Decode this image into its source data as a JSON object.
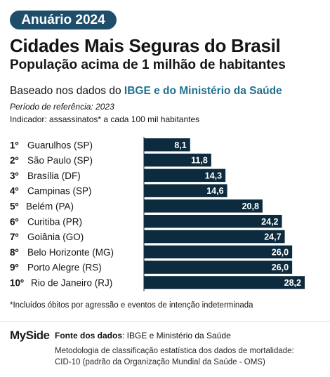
{
  "header": {
    "badge": "Anuário 2024",
    "title": "Cidades Mais Seguras do Brasil",
    "subtitle": "População acima de 1 milhão de habitantes",
    "basis_prefix": "Baseado nos dados do ",
    "basis_highlight": "IBGE e do Ministério da Saúde",
    "period": "Período de referência: 2023",
    "indicator": "Indicador: assassinatos* a cada 100 mil habitantes"
  },
  "chart_data": {
    "type": "bar",
    "orientation": "horizontal",
    "categories": [
      "Guarulhos (SP)",
      "São Paulo (SP)",
      "Brasília (DF)",
      "Campinas (SP)",
      "Belém (PA)",
      "Curitiba (PR)",
      "Goiânia (GO)",
      "Belo Horizonte (MG)",
      "Porto Alegre (RS)",
      "Rio de Janeiro (RJ)"
    ],
    "ranks": [
      "1º",
      "2º",
      "3º",
      "4º",
      "5º",
      "6º",
      "7º",
      "8º",
      "9º",
      "10º"
    ],
    "values": [
      8.1,
      11.8,
      14.3,
      14.6,
      20.8,
      24.2,
      24.7,
      26.0,
      26.0,
      28.2
    ],
    "value_labels": [
      "8,1",
      "11,8",
      "14,3",
      "14,6",
      "20,8",
      "24,2",
      "24,7",
      "26,0",
      "26,0",
      "28,2"
    ],
    "bar_color": "#0d2b3e",
    "grid": false
  },
  "footnote": "*Incluídos óbitos por agressão e eventos de intenção indeterminada",
  "footer": {
    "logo": "MySide",
    "source_label": "Fonte dos dados",
    "source_text": ": IBGE e Ministério da Saúde",
    "method_line1": "Metodologia de classificação estatística dos dados de mortalidade:",
    "method_line2": "CID-10 (padrão da Organização Mundial da Saúde - OMS)"
  }
}
